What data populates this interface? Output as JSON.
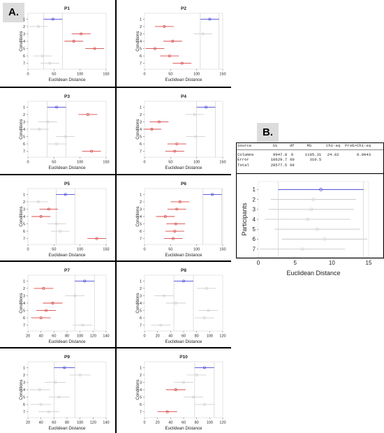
{
  "panel_labels": {
    "a": "A.",
    "b": "B."
  },
  "anova": {
    "headers": [
      "Source",
      "SS",
      "df",
      "MS",
      "Chi-sq",
      "Prob>Chi-sq"
    ],
    "rows": [
      [
        "Columns",
        "9947.8",
        "9",
        "1105.31",
        "24.02",
        "0.0043"
      ],
      [
        "Error",
        "18629.7",
        "60",
        "310.5",
        "",
        ""
      ],
      [
        "Total",
        "28577.5",
        "69",
        "",
        "",
        ""
      ]
    ]
  },
  "colors": {
    "highlight": "#4a4ad8",
    "significant": "#d84a4a",
    "neutral": "#cfcfcf"
  },
  "chart_data": [
    {
      "type": "interval",
      "title": "P1",
      "xlabel": "Euclidean Distance",
      "ylabel": "Conditions",
      "xlim": [
        0,
        150
      ],
      "xticks": [
        0,
        50,
        100,
        150
      ],
      "categories": [
        "1",
        "2",
        "3",
        "4",
        "5",
        "6",
        "7"
      ],
      "estimates": [
        {
          "mean": 48,
          "lo": 30,
          "hi": 66,
          "state": "highlight"
        },
        {
          "mean": 20,
          "lo": 2,
          "hi": 38,
          "state": "neutral"
        },
        {
          "mean": 102,
          "lo": 84,
          "hi": 120,
          "state": "significant"
        },
        {
          "mean": 88,
          "lo": 70,
          "hi": 106,
          "state": "significant"
        },
        {
          "mean": 128,
          "lo": 110,
          "hi": 146,
          "state": "significant"
        },
        {
          "mean": 28,
          "lo": 10,
          "hi": 46,
          "state": "neutral"
        },
        {
          "mean": 42,
          "lo": 24,
          "hi": 60,
          "state": "neutral"
        }
      ]
    },
    {
      "type": "interval",
      "title": "P2",
      "xlabel": "Euclidean Distance",
      "ylabel": "Conditions",
      "xlim": [
        0,
        150
      ],
      "xticks": [
        0,
        50,
        100,
        150
      ],
      "categories": [
        "1",
        "2",
        "3",
        "4",
        "5",
        "6",
        "7"
      ],
      "estimates": [
        {
          "mean": 125,
          "lo": 107,
          "hi": 143,
          "state": "highlight"
        },
        {
          "mean": 38,
          "lo": 20,
          "hi": 56,
          "state": "significant"
        },
        {
          "mean": 112,
          "lo": 94,
          "hi": 130,
          "state": "neutral"
        },
        {
          "mean": 54,
          "lo": 36,
          "hi": 72,
          "state": "significant"
        },
        {
          "mean": 20,
          "lo": 2,
          "hi": 38,
          "state": "significant"
        },
        {
          "mean": 48,
          "lo": 30,
          "hi": 66,
          "state": "significant"
        },
        {
          "mean": 72,
          "lo": 54,
          "hi": 90,
          "state": "significant"
        }
      ]
    },
    {
      "type": "interval",
      "title": "P3",
      "xlabel": "Euclidean Distance",
      "ylabel": "Conditions",
      "xlim": [
        0,
        150
      ],
      "xticks": [
        0,
        50,
        100,
        150
      ],
      "categories": [
        "1",
        "2",
        "3",
        "4",
        "5",
        "6",
        "7"
      ],
      "estimates": [
        {
          "mean": 55,
          "lo": 37,
          "hi": 73,
          "state": "highlight"
        },
        {
          "mean": 115,
          "lo": 97,
          "hi": 133,
          "state": "significant"
        },
        {
          "mean": 38,
          "lo": 20,
          "hi": 56,
          "state": "neutral"
        },
        {
          "mean": 22,
          "lo": 4,
          "hi": 40,
          "state": "neutral"
        },
        {
          "mean": 72,
          "lo": 54,
          "hi": 90,
          "state": "neutral"
        },
        {
          "mean": 55,
          "lo": 37,
          "hi": 73,
          "state": "neutral"
        },
        {
          "mean": 122,
          "lo": 104,
          "hi": 140,
          "state": "significant"
        }
      ]
    },
    {
      "type": "interval",
      "title": "P4",
      "xlabel": "Euclidean Distance",
      "ylabel": "Conditions",
      "xlim": [
        0,
        150
      ],
      "xticks": [
        0,
        50,
        100,
        150
      ],
      "categories": [
        "1",
        "2",
        "3",
        "4",
        "5",
        "6",
        "7"
      ],
      "estimates": [
        {
          "mean": 118,
          "lo": 100,
          "hi": 136,
          "state": "highlight"
        },
        {
          "mean": 96,
          "lo": 78,
          "hi": 114,
          "state": "neutral"
        },
        {
          "mean": 28,
          "lo": 10,
          "hi": 46,
          "state": "significant"
        },
        {
          "mean": 14,
          "lo": 0,
          "hi": 32,
          "state": "significant"
        },
        {
          "mean": 98,
          "lo": 80,
          "hi": 116,
          "state": "neutral"
        },
        {
          "mean": 62,
          "lo": 44,
          "hi": 80,
          "state": "significant"
        },
        {
          "mean": 58,
          "lo": 40,
          "hi": 76,
          "state": "significant"
        }
      ]
    },
    {
      "type": "interval",
      "title": "P5",
      "xlabel": "Euclidean Distance",
      "ylabel": "Conditions",
      "xlim": [
        0,
        150
      ],
      "xticks": [
        0,
        50,
        100,
        150
      ],
      "categories": [
        "1",
        "2",
        "3",
        "4",
        "5",
        "6",
        "7"
      ],
      "estimates": [
        {
          "mean": 72,
          "lo": 54,
          "hi": 90,
          "state": "highlight"
        },
        {
          "mean": 20,
          "lo": 2,
          "hi": 38,
          "state": "neutral"
        },
        {
          "mean": 40,
          "lo": 22,
          "hi": 58,
          "state": "significant"
        },
        {
          "mean": 25,
          "lo": 7,
          "hi": 43,
          "state": "significant"
        },
        {
          "mean": 55,
          "lo": 37,
          "hi": 73,
          "state": "neutral"
        },
        {
          "mean": 62,
          "lo": 44,
          "hi": 80,
          "state": "neutral"
        },
        {
          "mean": 132,
          "lo": 114,
          "hi": 150,
          "state": "significant"
        }
      ]
    },
    {
      "type": "interval",
      "title": "P6",
      "xlabel": "Euclidean Distance",
      "ylabel": "Conditions",
      "xlim": [
        0,
        150
      ],
      "xticks": [
        0,
        50,
        100,
        150
      ],
      "categories": [
        "1",
        "2",
        "3",
        "4",
        "5",
        "6",
        "7"
      ],
      "estimates": [
        {
          "mean": 130,
          "lo": 112,
          "hi": 148,
          "state": "highlight"
        },
        {
          "mean": 68,
          "lo": 50,
          "hi": 86,
          "state": "significant"
        },
        {
          "mean": 62,
          "lo": 44,
          "hi": 80,
          "state": "significant"
        },
        {
          "mean": 40,
          "lo": 22,
          "hi": 58,
          "state": "significant"
        },
        {
          "mean": 60,
          "lo": 42,
          "hi": 78,
          "state": "significant"
        },
        {
          "mean": 58,
          "lo": 40,
          "hi": 76,
          "state": "significant"
        },
        {
          "mean": 55,
          "lo": 37,
          "hi": 73,
          "state": "significant"
        }
      ]
    },
    {
      "type": "interval",
      "title": "P7",
      "xlabel": "Euclidean Distance",
      "ylabel": "Conditions",
      "xlim": [
        20,
        140
      ],
      "xticks": [
        20,
        40,
        60,
        80,
        100,
        120,
        140
      ],
      "categories": [
        "1",
        "2",
        "3",
        "4",
        "5",
        "6",
        "7"
      ],
      "estimates": [
        {
          "mean": 107,
          "lo": 92,
          "hi": 122,
          "state": "highlight"
        },
        {
          "mean": 44,
          "lo": 29,
          "hi": 59,
          "state": "significant"
        },
        {
          "mean": 92,
          "lo": 77,
          "hi": 107,
          "state": "neutral"
        },
        {
          "mean": 58,
          "lo": 43,
          "hi": 73,
          "state": "significant"
        },
        {
          "mean": 48,
          "lo": 33,
          "hi": 63,
          "state": "significant"
        },
        {
          "mean": 40,
          "lo": 25,
          "hi": 55,
          "state": "significant"
        },
        {
          "mean": 104,
          "lo": 89,
          "hi": 119,
          "state": "neutral"
        }
      ]
    },
    {
      "type": "interval",
      "title": "P8",
      "xlabel": "Euclidean Distance",
      "ylabel": "Conditions",
      "xlim": [
        0,
        120
      ],
      "xticks": [
        0,
        20,
        40,
        60,
        80,
        100,
        120
      ],
      "categories": [
        "1",
        "2",
        "3",
        "4",
        "5",
        "6",
        "7"
      ],
      "estimates": [
        {
          "mean": 60,
          "lo": 45,
          "hi": 75,
          "state": "highlight"
        },
        {
          "mean": 95,
          "lo": 80,
          "hi": 110,
          "state": "neutral"
        },
        {
          "mean": 30,
          "lo": 15,
          "hi": 45,
          "state": "neutral"
        },
        {
          "mean": 48,
          "lo": 33,
          "hi": 63,
          "state": "neutral"
        },
        {
          "mean": 98,
          "lo": 83,
          "hi": 113,
          "state": "neutral"
        },
        {
          "mean": 92,
          "lo": 77,
          "hi": 107,
          "state": "neutral"
        },
        {
          "mean": 25,
          "lo": 10,
          "hi": 40,
          "state": "neutral"
        }
      ]
    },
    {
      "type": "interval",
      "title": "P9",
      "xlabel": "Euclidean Distance",
      "ylabel": "Conditions",
      "xlim": [
        20,
        140
      ],
      "xticks": [
        20,
        40,
        60,
        80,
        100,
        120,
        140
      ],
      "categories": [
        "1",
        "2",
        "3",
        "4",
        "5",
        "6",
        "7"
      ],
      "estimates": [
        {
          "mean": 76,
          "lo": 60,
          "hi": 92,
          "state": "highlight"
        },
        {
          "mean": 100,
          "lo": 84,
          "hi": 116,
          "state": "neutral"
        },
        {
          "mean": 62,
          "lo": 46,
          "hi": 78,
          "state": "neutral"
        },
        {
          "mean": 38,
          "lo": 22,
          "hi": 54,
          "state": "neutral"
        },
        {
          "mean": 68,
          "lo": 52,
          "hi": 84,
          "state": "neutral"
        },
        {
          "mean": 40,
          "lo": 24,
          "hi": 56,
          "state": "neutral"
        },
        {
          "mean": 52,
          "lo": 36,
          "hi": 68,
          "state": "neutral"
        }
      ]
    },
    {
      "type": "interval",
      "title": "P10",
      "xlabel": "Euclidean Distance",
      "ylabel": "Conditions",
      "xlim": [
        0,
        120
      ],
      "xticks": [
        0,
        20,
        40,
        60,
        80,
        100,
        120
      ],
      "categories": [
        "1",
        "2",
        "3",
        "4",
        "5",
        "6",
        "7"
      ],
      "estimates": [
        {
          "mean": 92,
          "lo": 77,
          "hi": 107,
          "state": "highlight"
        },
        {
          "mean": 80,
          "lo": 65,
          "hi": 95,
          "state": "neutral"
        },
        {
          "mean": 60,
          "lo": 45,
          "hi": 75,
          "state": "neutral"
        },
        {
          "mean": 48,
          "lo": 33,
          "hi": 63,
          "state": "significant"
        },
        {
          "mean": 75,
          "lo": 60,
          "hi": 90,
          "state": "neutral"
        },
        {
          "mean": 92,
          "lo": 77,
          "hi": 107,
          "state": "neutral"
        },
        {
          "mean": 35,
          "lo": 20,
          "hi": 50,
          "state": "significant"
        }
      ]
    },
    {
      "type": "interval",
      "title": "",
      "xlabel": "Euclidean Distance",
      "ylabel": "Participants",
      "xlim": [
        0,
        15
      ],
      "xticks": [
        0,
        5,
        10,
        15
      ],
      "categories": [
        "1",
        "2",
        "3",
        "4",
        "5",
        "6",
        "7"
      ],
      "estimates": [
        {
          "mean": 8.5,
          "lo": 2.7,
          "hi": 14.3,
          "state": "highlight"
        },
        {
          "mean": 7.5,
          "lo": 1.7,
          "hi": 13.3,
          "state": "neutral"
        },
        {
          "mean": 7.2,
          "lo": 1.4,
          "hi": 13.0,
          "state": "neutral"
        },
        {
          "mean": 6.7,
          "lo": 0.9,
          "hi": 12.5,
          "state": "neutral"
        },
        {
          "mean": 8.0,
          "lo": 2.2,
          "hi": 13.8,
          "state": "neutral"
        },
        {
          "mean": 9.0,
          "lo": 3.2,
          "hi": 14.8,
          "state": "neutral"
        },
        {
          "mean": 6.0,
          "lo": 0.2,
          "hi": 11.8,
          "state": "neutral"
        }
      ]
    }
  ]
}
